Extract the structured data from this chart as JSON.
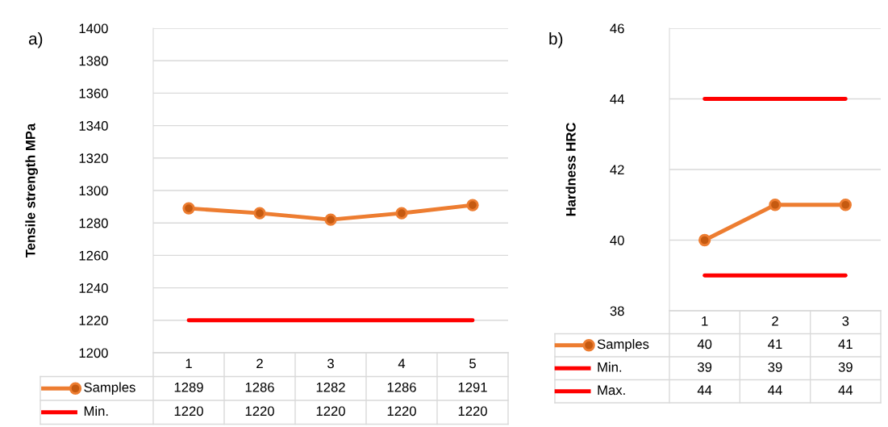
{
  "chart_data": [
    {
      "type": "line",
      "title": "a)",
      "ylabel": "Tensile strength MPa",
      "categories": [
        "1",
        "2",
        "3",
        "4",
        "5"
      ],
      "series": [
        {
          "name": "Samples",
          "color": "#ed7d31",
          "marker": "circle",
          "values": [
            1289,
            1286,
            1282,
            1286,
            1291
          ]
        },
        {
          "name": "Min.",
          "color": "#ff0000",
          "marker": "none",
          "values": [
            1220,
            1220,
            1220,
            1220,
            1220
          ]
        }
      ],
      "ylim": [
        1200,
        1400
      ],
      "yticks": [
        1200,
        1220,
        1240,
        1260,
        1280,
        1300,
        1320,
        1340,
        1360,
        1380,
        1400
      ],
      "grid": "y",
      "legend": "bottom",
      "data_labels": true
    },
    {
      "type": "line",
      "title": "b)",
      "ylabel": "Hardness HRC",
      "categories": [
        "1",
        "2",
        "3"
      ],
      "series": [
        {
          "name": "Samples",
          "color": "#ed7d31",
          "marker": "circle",
          "values": [
            40,
            41,
            41
          ]
        },
        {
          "name": "Min.",
          "color": "#ff0000",
          "marker": "none",
          "values": [
            39,
            39,
            39
          ]
        },
        {
          "name": "Max.",
          "color": "#ff0000",
          "marker": "none",
          "values": [
            44,
            44,
            44
          ]
        }
      ],
      "ylim": [
        38,
        46
      ],
      "yticks": [
        38,
        40,
        42,
        44,
        46
      ],
      "grid": "y",
      "legend": "bottom",
      "data_labels": true
    }
  ]
}
